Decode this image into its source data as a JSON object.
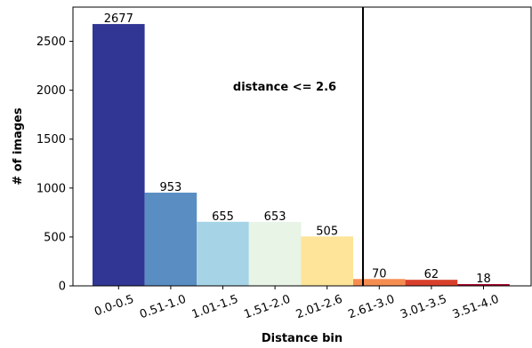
{
  "chart_data": {
    "type": "bar",
    "categories": [
      "0.0-0.5",
      "0.51-1.0",
      "1.01-1.5",
      "1.51-2.0",
      "2.01-2.6",
      "2.61-3.0",
      "3.01-3.5",
      "3.51-4.0"
    ],
    "values": [
      2677,
      953,
      655,
      653,
      505,
      70,
      62,
      18
    ],
    "colors": [
      "#313695",
      "#5a8ec3",
      "#a6d4e6",
      "#e7f4e6",
      "#fde498",
      "#f58d51",
      "#d8402b",
      "#a50026"
    ],
    "xlabel": "Distance bin",
    "ylabel": "# of images",
    "ylim": [
      0,
      2850
    ],
    "yticks": [
      0,
      500,
      1000,
      1500,
      2000,
      2500
    ],
    "threshold": {
      "x": 2.6,
      "label": "distance <= 2.6"
    },
    "grid": false,
    "legend": "none"
  }
}
